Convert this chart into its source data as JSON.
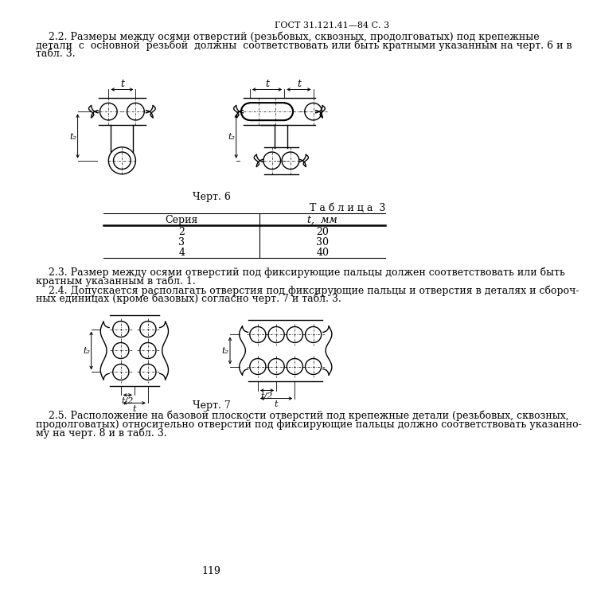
{
  "title_right": "ГОСТ 31.121.41—84 С. 3",
  "para22": "    2.2. Размеры между осями отверстий (резьбовых, сквозных, продолговатых) под крепежные\nдетали  с  основной  резьбой  должны  соответствовать или быть кратными указанным на черт. 6 и в\nтабл. 3.",
  "chert6_label": "Черт. 6",
  "table_title": "Т а б л и ц а  3",
  "table_header_col1": "Серия",
  "table_header_col2": "t,  мм",
  "table_rows": [
    [
      "2",
      "20"
    ],
    [
      "3",
      "30"
    ],
    [
      "4",
      "40"
    ]
  ],
  "para23": "    2.3. Размер между осями отверстий под фиксирующие пальцы должен соответствовать или быть\nкратным указанным в табл. 1.",
  "para24": "    2.4. Допускается располагать отверстия под фиксирующие пальцы и отверстия в деталях и сбороч-\nных единицах (кроме базовых) согласно черт. 7 и табл. 3.",
  "chert7_label": "Черт. 7",
  "para25": "    2.5. Расположение на базовой плоскости отверстий под крепежные детали (резьбовых, сквозных,\nпродолговатых) относительно отверстий под фиксирующие пальцы должно соответствовать указанно-\nму на черт. 8 и в табл. 3.",
  "page_num": "119",
  "bg_color": "#ffffff",
  "text_color": "#000000"
}
